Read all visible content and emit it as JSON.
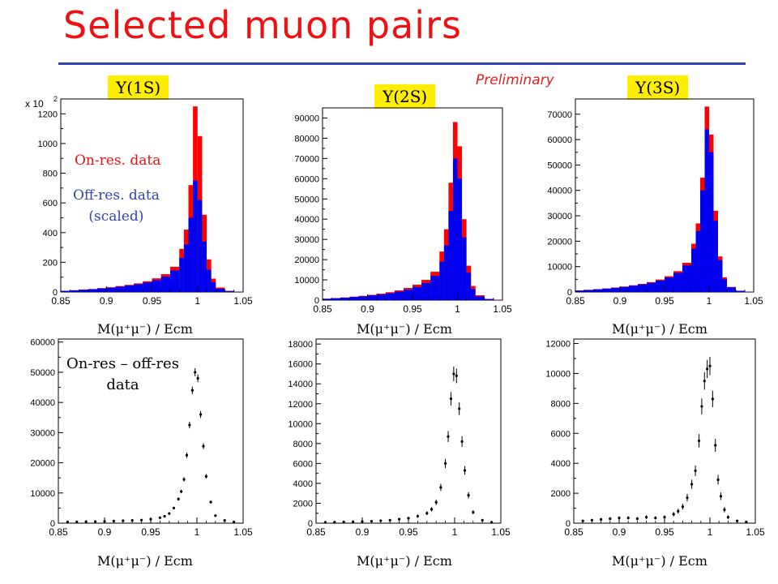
{
  "title": "Selected muon pairs",
  "preliminary": "Preliminary",
  "xcaption": "M(μ⁺μ⁻) / Ecm",
  "tags": [
    "Υ(1S)",
    "Υ(2S)",
    "Υ(3S)"
  ],
  "legend": {
    "on": "On-res. data",
    "off": "Off-res. data",
    "off_sub": "(scaled)"
  },
  "diff_label": {
    "line1": "On-res – off-res",
    "line2": "data"
  },
  "x_ticks": [
    "0.85",
    "0.9",
    "0.95",
    "1",
    "1.05"
  ],
  "colors": {
    "on_res": "#ff0000",
    "off_res": "#0000ee",
    "title": "#ee1111",
    "rule": "#3344bb",
    "tag_bg": "#ffee00"
  },
  "chart_data": [
    {
      "type": "bar",
      "panel": "Υ(1S) top",
      "xlim": [
        0.85,
        1.05
      ],
      "ylim": [
        0,
        1300
      ],
      "y_multiplier_label": "x 10",
      "y_multiplier_exp": "2",
      "y_ticks": [
        "0",
        "200",
        "400",
        "600",
        "800",
        "1000",
        "1200"
      ],
      "y_tick_values": [
        0,
        200,
        400,
        600,
        800,
        1000,
        1200
      ],
      "x": [
        0.85,
        0.86,
        0.87,
        0.88,
        0.89,
        0.9,
        0.91,
        0.92,
        0.93,
        0.94,
        0.95,
        0.96,
        0.97,
        0.98,
        0.985,
        0.99,
        0.995,
        1.0,
        1.005,
        1.01,
        1.015,
        1.02,
        1.03,
        1.04
      ],
      "series": [
        {
          "name": "On-res. data",
          "values": [
            8,
            12,
            16,
            20,
            26,
            32,
            40,
            48,
            58,
            72,
            92,
            120,
            170,
            290,
            420,
            720,
            1250,
            1050,
            520,
            220,
            90,
            30,
            8,
            2
          ]
        },
        {
          "name": "Off-res. data (scaled)",
          "values": [
            8,
            11,
            15,
            19,
            24,
            29,
            36,
            43,
            52,
            64,
            80,
            104,
            145,
            230,
            320,
            500,
            750,
            620,
            340,
            150,
            65,
            22,
            6,
            2
          ]
        }
      ]
    },
    {
      "type": "bar",
      "panel": "Υ(2S) top",
      "xlim": [
        0.85,
        1.05
      ],
      "ylim": [
        0,
        95000
      ],
      "y_ticks": [
        "0",
        "10000",
        "20000",
        "30000",
        "40000",
        "50000",
        "60000",
        "70000",
        "80000",
        "90000"
      ],
      "y_tick_values": [
        0,
        10000,
        20000,
        30000,
        40000,
        50000,
        60000,
        70000,
        80000,
        90000
      ],
      "x": [
        0.85,
        0.86,
        0.87,
        0.88,
        0.89,
        0.9,
        0.91,
        0.92,
        0.93,
        0.94,
        0.95,
        0.96,
        0.97,
        0.98,
        0.985,
        0.99,
        0.995,
        1.0,
        1.005,
        1.01,
        1.015,
        1.02,
        1.03,
        1.04
      ],
      "series": [
        {
          "name": "On-res. data",
          "values": [
            700,
            1000,
            1300,
            1700,
            2100,
            2600,
            3200,
            3900,
            4800,
            6000,
            7600,
            10000,
            14000,
            24000,
            35000,
            58000,
            88000,
            76000,
            40000,
            17000,
            7000,
            2400,
            600,
            150
          ]
        },
        {
          "name": "Off-res. data (scaled)",
          "values": [
            650,
            900,
            1200,
            1550,
            1900,
            2300,
            2800,
            3400,
            4200,
            5200,
            6500,
            8500,
            12000,
            19000,
            27000,
            44000,
            70000,
            60000,
            31000,
            13500,
            5500,
            1900,
            500,
            120
          ]
        }
      ]
    },
    {
      "type": "bar",
      "panel": "Υ(3S) top",
      "xlim": [
        0.85,
        1.05
      ],
      "ylim": [
        0,
        76000
      ],
      "y_ticks": [
        "0",
        "10000",
        "20000",
        "30000",
        "40000",
        "50000",
        "60000",
        "70000"
      ],
      "y_tick_values": [
        0,
        10000,
        20000,
        30000,
        40000,
        50000,
        60000,
        70000
      ],
      "x": [
        0.85,
        0.86,
        0.87,
        0.88,
        0.89,
        0.9,
        0.91,
        0.92,
        0.93,
        0.94,
        0.95,
        0.96,
        0.97,
        0.98,
        0.985,
        0.99,
        0.995,
        1.0,
        1.005,
        1.01,
        1.015,
        1.02,
        1.03,
        1.04
      ],
      "series": [
        {
          "name": "On-res. data",
          "values": [
            600,
            850,
            1100,
            1400,
            1750,
            2150,
            2650,
            3200,
            3900,
            4900,
            6200,
            8200,
            11500,
            19000,
            27000,
            45000,
            73000,
            62000,
            32000,
            14000,
            5800,
            2000,
            500,
            120
          ]
        },
        {
          "name": "Off-res. data (scaled)",
          "values": [
            580,
            800,
            1050,
            1300,
            1650,
            2000,
            2450,
            3000,
            3600,
            4500,
            5700,
            7500,
            10500,
            17000,
            24000,
            40000,
            64000,
            55000,
            28000,
            12500,
            5000,
            1800,
            450,
            100
          ]
        }
      ]
    },
    {
      "type": "scatter",
      "panel": "Υ(1S) bottom",
      "xlim": [
        0.85,
        1.05
      ],
      "ylim": [
        0,
        61000
      ],
      "y_ticks": [
        "0",
        "10000",
        "20000",
        "30000",
        "40000",
        "50000",
        "60000"
      ],
      "y_tick_values": [
        0,
        10000,
        20000,
        30000,
        40000,
        50000,
        60000
      ],
      "x": [
        0.86,
        0.87,
        0.88,
        0.89,
        0.9,
        0.91,
        0.92,
        0.93,
        0.94,
        0.95,
        0.96,
        0.965,
        0.97,
        0.975,
        0.98,
        0.983,
        0.986,
        0.989,
        0.992,
        0.995,
        0.998,
        1.001,
        1.004,
        1.007,
        1.01,
        1.015,
        1.02,
        1.03,
        1.04
      ],
      "y": [
        400,
        450,
        500,
        550,
        600,
        700,
        800,
        900,
        1000,
        1300,
        1800,
        2300,
        3200,
        5000,
        8000,
        10500,
        14500,
        22500,
        32500,
        44000,
        50000,
        48000,
        36000,
        25500,
        15500,
        7000,
        2500,
        900,
        400
      ]
    },
    {
      "type": "scatter",
      "panel": "Υ(2S) bottom",
      "xlim": [
        0.85,
        1.05
      ],
      "ylim": [
        0,
        18500
      ],
      "y_ticks": [
        "0",
        "2000",
        "4000",
        "6000",
        "8000",
        "10000",
        "12000",
        "14000",
        "16000",
        "18000"
      ],
      "y_tick_values": [
        0,
        2000,
        4000,
        6000,
        8000,
        10000,
        12000,
        14000,
        16000,
        18000
      ],
      "x": [
        0.86,
        0.87,
        0.88,
        0.89,
        0.9,
        0.91,
        0.92,
        0.93,
        0.94,
        0.95,
        0.96,
        0.97,
        0.975,
        0.98,
        0.985,
        0.99,
        0.993,
        0.996,
        0.999,
        1.002,
        1.005,
        1.008,
        1.011,
        1.015,
        1.02,
        1.03,
        1.04
      ],
      "y": [
        80,
        100,
        120,
        140,
        160,
        200,
        250,
        300,
        400,
        500,
        700,
        1000,
        1400,
        2100,
        3600,
        6000,
        8700,
        12500,
        15000,
        14800,
        11500,
        8200,
        5300,
        2800,
        1100,
        300,
        80
      ]
    },
    {
      "type": "scatter",
      "panel": "Υ(3S) bottom",
      "xlim": [
        0.85,
        1.05
      ],
      "ylim": [
        0,
        12300
      ],
      "y_ticks": [
        "0",
        "2000",
        "4000",
        "6000",
        "8000",
        "10000",
        "12000"
      ],
      "y_tick_values": [
        0,
        2000,
        4000,
        6000,
        8000,
        10000,
        12000
      ],
      "x": [
        0.86,
        0.87,
        0.88,
        0.89,
        0.9,
        0.91,
        0.92,
        0.93,
        0.94,
        0.95,
        0.96,
        0.965,
        0.97,
        0.975,
        0.98,
        0.984,
        0.988,
        0.991,
        0.994,
        0.997,
        1.0,
        1.003,
        1.006,
        1.009,
        1.012,
        1.016,
        1.02,
        1.03,
        1.04
      ],
      "y": [
        150,
        200,
        250,
        300,
        350,
        350,
        300,
        400,
        350,
        400,
        600,
        800,
        1100,
        1700,
        2600,
        3500,
        5500,
        7800,
        9500,
        10300,
        10500,
        8300,
        5200,
        2900,
        1800,
        900,
        400,
        150,
        80
      ]
    }
  ]
}
